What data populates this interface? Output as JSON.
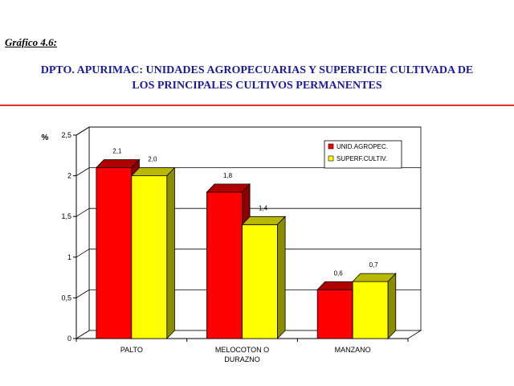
{
  "header": {
    "label": "Gráfico 4.6:",
    "title_line1": "DPTO. APURIMAC: UNIDADES AGROPECUARIAS Y SUPERFICIE CULTIVADA DE",
    "title_line2": "LOS PRINCIPALES CULTIVOS PERMANENTES"
  },
  "colors": {
    "rule": "#e03030",
    "title": "#1a1aa0",
    "unid_front": "#ff0000",
    "unid_top": "#b00000",
    "unid_side": "#8a0000",
    "superf_front": "#ffff00",
    "superf_top": "#b8b800",
    "superf_side": "#8c8c00"
  },
  "chart_data": {
    "type": "bar",
    "style": "3d-clustered",
    "ylabel": "%",
    "ylim": [
      0,
      2.5
    ],
    "yticks": [
      "0",
      "0,5",
      "1",
      "1,5",
      "2",
      "2,5"
    ],
    "grid": true,
    "legend_position": "top-right",
    "categories": [
      "PALTO",
      "MELOCOTON  O DURAZNO",
      "MANZANO"
    ],
    "category_lines": [
      [
        "PALTO"
      ],
      [
        "MELOCOTON  O",
        "DURAZNO"
      ],
      [
        "MANZANO"
      ]
    ],
    "series": [
      {
        "name": "UNID.AGROPEC.",
        "values": [
          2.1,
          1.8,
          0.6
        ],
        "labels": [
          "2,1",
          "1,8",
          "0,6"
        ]
      },
      {
        "name": "SUPERF.CULTIV.",
        "values": [
          2.0,
          1.4,
          0.7
        ],
        "labels": [
          "2,0",
          "1,4",
          "0,7"
        ]
      }
    ]
  }
}
